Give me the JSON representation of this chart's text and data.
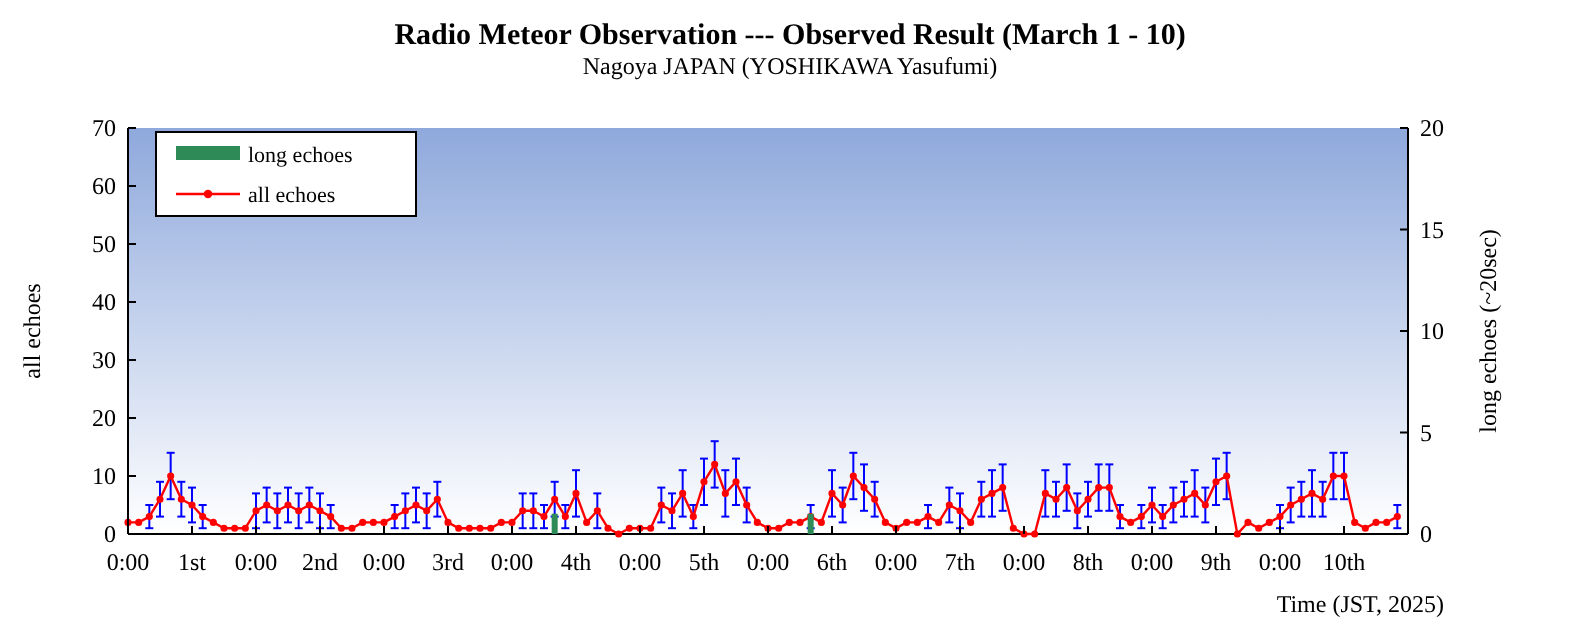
{
  "chart_data": {
    "type": "line",
    "title": "Radio Meteor Observation --- Observed Result (March 1 - 10)",
    "subtitle": "Nagoya JAPAN (YOSHIKAWA Yasufumi)",
    "xlabel": "Time (JST, 2025)",
    "ylabel": "all echoes",
    "y2label": "long echoes (~20sec)",
    "xlim": [
      "2025-03-01T00:00",
      "2025-03-11T00:00"
    ],
    "xticks": [
      {
        "value": "2025-03-01T00:00",
        "label": "0:00"
      },
      {
        "value": "2025-03-01T12:00",
        "label": "1st"
      },
      {
        "value": "2025-03-02T00:00",
        "label": "0:00"
      },
      {
        "value": "2025-03-02T12:00",
        "label": "2nd"
      },
      {
        "value": "2025-03-03T00:00",
        "label": "0:00"
      },
      {
        "value": "2025-03-03T12:00",
        "label": "3rd"
      },
      {
        "value": "2025-03-04T00:00",
        "label": "0:00"
      },
      {
        "value": "2025-03-04T12:00",
        "label": "4th"
      },
      {
        "value": "2025-03-05T00:00",
        "label": "0:00"
      },
      {
        "value": "2025-03-05T12:00",
        "label": "5th"
      },
      {
        "value": "2025-03-06T00:00",
        "label": "0:00"
      },
      {
        "value": "2025-03-06T12:00",
        "label": "6th"
      },
      {
        "value": "2025-03-07T00:00",
        "label": "0:00"
      },
      {
        "value": "2025-03-07T12:00",
        "label": "7th"
      },
      {
        "value": "2025-03-08T00:00",
        "label": "0:00"
      },
      {
        "value": "2025-03-08T12:00",
        "label": "8th"
      },
      {
        "value": "2025-03-09T00:00",
        "label": "0:00"
      },
      {
        "value": "2025-03-09T12:00",
        "label": "9th"
      },
      {
        "value": "2025-03-10T00:00",
        "label": "0:00"
      },
      {
        "value": "2025-03-10T12:00",
        "label": "10th"
      }
    ],
    "ylim": [
      0,
      70
    ],
    "yticks": [
      0,
      10,
      20,
      30,
      40,
      50,
      60,
      70
    ],
    "y2lim": [
      0,
      20
    ],
    "y2ticks": [
      0,
      5,
      10,
      15,
      20
    ],
    "legend": "top left",
    "marker": "circle",
    "series": [
      {
        "name": "long echoes",
        "type": "bar",
        "axis": "y2",
        "color": "#2e8b57",
        "x": [
          "2025-03-04T08:00",
          "2025-03-06T08:00"
        ],
        "values": [
          1,
          1
        ]
      },
      {
        "name": "all echoes",
        "color": "#ff0000",
        "x": [
          "2025-03-01T00:00",
          "2025-03-01T02:00",
          "2025-03-01T04:00",
          "2025-03-01T06:00",
          "2025-03-01T08:00",
          "2025-03-01T10:00",
          "2025-03-01T12:00",
          "2025-03-01T14:00",
          "2025-03-01T16:00",
          "2025-03-01T18:00",
          "2025-03-01T20:00",
          "2025-03-01T22:00",
          "2025-03-02T00:00",
          "2025-03-02T02:00",
          "2025-03-02T04:00",
          "2025-03-02T06:00",
          "2025-03-02T08:00",
          "2025-03-02T10:00",
          "2025-03-02T12:00",
          "2025-03-02T14:00",
          "2025-03-02T16:00",
          "2025-03-02T18:00",
          "2025-03-02T20:00",
          "2025-03-02T22:00",
          "2025-03-03T00:00",
          "2025-03-03T02:00",
          "2025-03-03T04:00",
          "2025-03-03T06:00",
          "2025-03-03T08:00",
          "2025-03-03T10:00",
          "2025-03-03T12:00",
          "2025-03-03T14:00",
          "2025-03-03T16:00",
          "2025-03-03T18:00",
          "2025-03-03T20:00",
          "2025-03-03T22:00",
          "2025-03-04T00:00",
          "2025-03-04T02:00",
          "2025-03-04T04:00",
          "2025-03-04T06:00",
          "2025-03-04T08:00",
          "2025-03-04T10:00",
          "2025-03-04T12:00",
          "2025-03-04T14:00",
          "2025-03-04T16:00",
          "2025-03-04T18:00",
          "2025-03-04T20:00",
          "2025-03-04T22:00",
          "2025-03-05T00:00",
          "2025-03-05T02:00",
          "2025-03-05T04:00",
          "2025-03-05T06:00",
          "2025-03-05T08:00",
          "2025-03-05T10:00",
          "2025-03-05T12:00",
          "2025-03-05T14:00",
          "2025-03-05T16:00",
          "2025-03-05T18:00",
          "2025-03-05T20:00",
          "2025-03-05T22:00",
          "2025-03-06T00:00",
          "2025-03-06T02:00",
          "2025-03-06T04:00",
          "2025-03-06T06:00",
          "2025-03-06T08:00",
          "2025-03-06T10:00",
          "2025-03-06T12:00",
          "2025-03-06T14:00",
          "2025-03-06T16:00",
          "2025-03-06T18:00",
          "2025-03-06T20:00",
          "2025-03-06T22:00",
          "2025-03-07T00:00",
          "2025-03-07T02:00",
          "2025-03-07T04:00",
          "2025-03-07T06:00",
          "2025-03-07T08:00",
          "2025-03-07T10:00",
          "2025-03-07T12:00",
          "2025-03-07T14:00",
          "2025-03-07T16:00",
          "2025-03-07T18:00",
          "2025-03-07T20:00",
          "2025-03-07T22:00",
          "2025-03-08T00:00",
          "2025-03-08T02:00",
          "2025-03-08T04:00",
          "2025-03-08T06:00",
          "2025-03-08T08:00",
          "2025-03-08T10:00",
          "2025-03-08T12:00",
          "2025-03-08T14:00",
          "2025-03-08T16:00",
          "2025-03-08T18:00",
          "2025-03-08T20:00",
          "2025-03-08T22:00",
          "2025-03-09T00:00",
          "2025-03-09T02:00",
          "2025-03-09T04:00",
          "2025-03-09T06:00",
          "2025-03-09T08:00",
          "2025-03-09T10:00",
          "2025-03-09T12:00",
          "2025-03-09T14:00",
          "2025-03-09T16:00",
          "2025-03-09T18:00",
          "2025-03-09T20:00",
          "2025-03-09T22:00",
          "2025-03-10T00:00",
          "2025-03-10T02:00",
          "2025-03-10T04:00",
          "2025-03-10T06:00",
          "2025-03-10T08:00",
          "2025-03-10T10:00",
          "2025-03-10T12:00",
          "2025-03-10T14:00",
          "2025-03-10T16:00",
          "2025-03-10T18:00",
          "2025-03-10T20:00",
          "2025-03-10T22:00"
        ],
        "values": [
          2,
          2,
          3,
          6,
          10,
          6,
          5,
          3,
          2,
          1,
          1,
          1,
          4,
          5,
          4,
          5,
          4,
          5,
          4,
          3,
          1,
          1,
          2,
          2,
          2,
          3,
          4,
          5,
          4,
          6,
          2,
          1,
          1,
          1,
          1,
          2,
          2,
          4,
          4,
          3,
          6,
          3,
          7,
          2,
          4,
          1,
          0,
          1,
          1,
          1,
          5,
          4,
          7,
          3,
          9,
          12,
          7,
          9,
          5,
          2,
          1,
          1,
          2,
          2,
          3,
          2,
          7,
          5,
          10,
          8,
          6,
          2,
          1,
          2,
          2,
          3,
          2,
          5,
          4,
          2,
          6,
          7,
          8,
          1,
          0,
          0,
          7,
          6,
          8,
          4,
          6,
          8,
          8,
          3,
          2,
          3,
          5,
          3,
          5,
          6,
          7,
          5,
          9,
          10,
          0,
          2,
          1,
          2,
          3,
          5,
          6,
          7,
          6,
          10,
          10,
          2,
          1,
          2,
          2,
          3
        ],
        "errors": [
          null,
          null,
          2,
          3,
          4,
          3,
          3,
          2,
          null,
          null,
          null,
          null,
          3,
          3,
          3,
          3,
          3,
          3,
          3,
          2,
          null,
          null,
          null,
          null,
          null,
          2,
          3,
          3,
          3,
          3,
          null,
          null,
          null,
          null,
          null,
          null,
          null,
          3,
          3,
          2,
          3,
          2,
          4,
          null,
          3,
          null,
          null,
          null,
          null,
          null,
          3,
          3,
          4,
          2,
          4,
          4,
          4,
          4,
          3,
          null,
          null,
          null,
          null,
          null,
          2,
          null,
          4,
          3,
          4,
          4,
          3,
          null,
          null,
          null,
          null,
          2,
          null,
          3,
          3,
          null,
          3,
          4,
          4,
          null,
          null,
          null,
          4,
          3,
          4,
          3,
          3,
          4,
          4,
          2,
          null,
          2,
          3,
          2,
          3,
          3,
          4,
          3,
          4,
          4,
          null,
          null,
          null,
          null,
          2,
          3,
          3,
          4,
          3,
          4,
          4,
          null,
          null,
          null,
          null,
          2
        ]
      }
    ]
  }
}
